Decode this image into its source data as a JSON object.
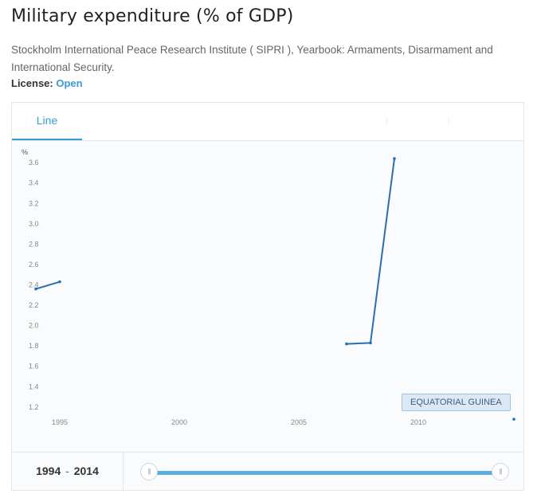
{
  "page": {
    "title": "Military expenditure (% of GDP)",
    "source": "Stockholm International Peace Research Institute ( SIPRI ), Yearbook: Armaments, Disarmament and International Security.",
    "license_label": "License:",
    "license_value": "Open"
  },
  "tabs": [
    {
      "label": "Line",
      "active": true
    }
  ],
  "range": {
    "start": "1994",
    "end": "2014",
    "separator": "-"
  },
  "legend": {
    "label": "EQUATORIAL GUINEA"
  },
  "colors": {
    "accent": "#3a9ad9",
    "line": "#2a6fad",
    "slider": "#5aaee0"
  },
  "chart_data": {
    "type": "line",
    "yunit": "%",
    "ylim": [
      1.05,
      3.75
    ],
    "xlim": [
      1994,
      2014
    ],
    "yticks": [
      "1.2",
      "1.4",
      "1.6",
      "1.8",
      "2.0",
      "2.2",
      "2.4",
      "2.6",
      "2.8",
      "3.0",
      "3.2",
      "3.4",
      "3.6"
    ],
    "xticks": [
      "1995",
      "2000",
      "2005",
      "2010"
    ],
    "grid": false,
    "series": [
      {
        "name": "EQUATORIAL GUINEA",
        "points": [
          {
            "x": 1994,
            "y": 2.36
          },
          {
            "x": 1995,
            "y": 2.43
          },
          {
            "x": 1996,
            "y": null
          },
          {
            "x": 2007,
            "y": 1.82
          },
          {
            "x": 2008,
            "y": 1.83
          },
          {
            "x": 2009,
            "y": 3.64
          },
          {
            "x": 2010,
            "y": null
          },
          {
            "x": 2014,
            "y": 1.08
          }
        ]
      }
    ]
  }
}
